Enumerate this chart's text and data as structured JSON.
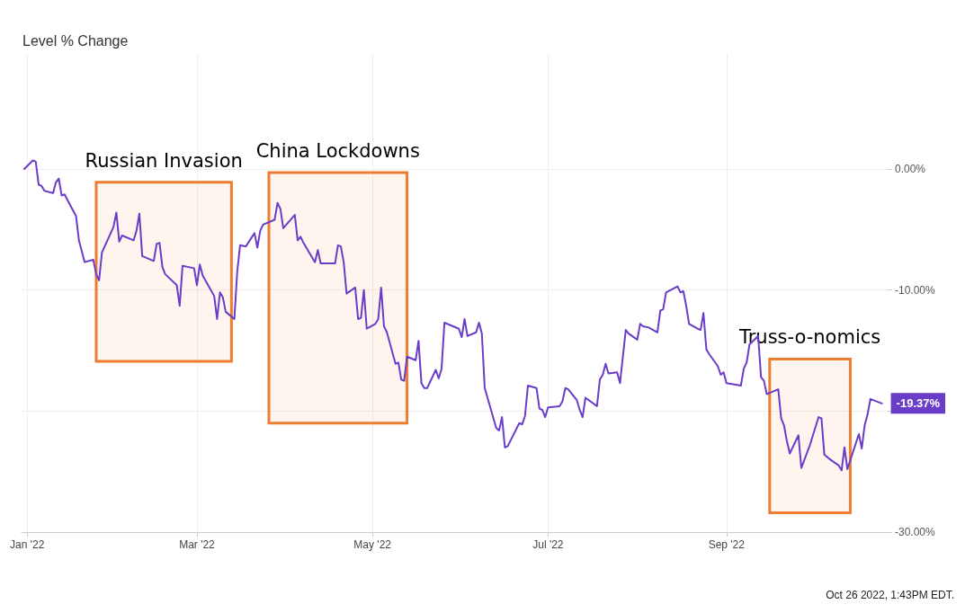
{
  "chart_data": {
    "type": "line",
    "title": "Level % Change",
    "x": [
      "2021-12-31",
      "2022-01-03",
      "2022-01-04",
      "2022-01-05",
      "2022-01-06",
      "2022-01-07",
      "2022-01-10",
      "2022-01-11",
      "2022-01-12",
      "2022-01-13",
      "2022-01-14",
      "2022-01-18",
      "2022-01-19",
      "2022-01-21",
      "2022-01-24",
      "2022-01-25",
      "2022-01-26",
      "2022-01-27",
      "2022-01-31",
      "2022-02-01",
      "2022-02-02",
      "2022-02-03",
      "2022-02-07",
      "2022-02-08",
      "2022-02-09",
      "2022-02-10",
      "2022-02-14",
      "2022-02-15",
      "2022-02-16",
      "2022-02-17",
      "2022-02-18",
      "2022-02-22",
      "2022-02-23",
      "2022-02-24",
      "2022-02-28",
      "2022-03-01",
      "2022-03-02",
      "2022-03-03",
      "2022-03-07",
      "2022-03-08",
      "2022-03-09",
      "2022-03-10",
      "2022-03-11",
      "2022-03-14",
      "2022-03-15",
      "2022-03-16",
      "2022-03-18",
      "2022-03-21",
      "2022-03-22",
      "2022-03-23",
      "2022-03-24",
      "2022-03-28",
      "2022-03-29",
      "2022-03-30",
      "2022-03-31",
      "2022-04-04",
      "2022-04-05",
      "2022-04-06",
      "2022-04-07",
      "2022-04-11",
      "2022-04-12",
      "2022-04-13",
      "2022-04-18",
      "2022-04-19",
      "2022-04-20",
      "2022-04-21",
      "2022-04-22",
      "2022-04-25",
      "2022-04-26",
      "2022-04-27",
      "2022-04-28",
      "2022-04-29",
      "2022-05-02",
      "2022-05-03",
      "2022-05-04",
      "2022-05-05",
      "2022-05-06",
      "2022-05-09",
      "2022-05-10",
      "2022-05-11",
      "2022-05-12",
      "2022-05-13",
      "2022-05-16",
      "2022-05-17",
      "2022-05-18",
      "2022-05-19",
      "2022-05-20",
      "2022-05-23",
      "2022-05-24",
      "2022-05-25",
      "2022-05-26",
      "2022-05-31",
      "2022-06-01",
      "2022-06-02",
      "2022-06-03",
      "2022-06-06",
      "2022-06-07",
      "2022-06-08",
      "2022-06-09",
      "2022-06-13",
      "2022-06-14",
      "2022-06-15",
      "2022-06-16",
      "2022-06-17",
      "2022-06-21",
      "2022-06-22",
      "2022-06-23",
      "2022-06-24",
      "2022-06-27",
      "2022-06-28",
      "2022-06-29",
      "2022-06-30",
      "2022-07-01",
      "2022-07-05",
      "2022-07-06",
      "2022-07-07",
      "2022-07-08",
      "2022-07-11",
      "2022-07-12",
      "2022-07-13",
      "2022-07-14",
      "2022-07-18",
      "2022-07-19",
      "2022-07-20",
      "2022-07-21",
      "2022-07-22",
      "2022-07-25",
      "2022-07-26",
      "2022-07-27",
      "2022-07-28",
      "2022-07-29",
      "2022-08-01",
      "2022-08-02",
      "2022-08-03",
      "2022-08-05",
      "2022-08-08",
      "2022-08-09",
      "2022-08-10",
      "2022-08-11",
      "2022-08-15",
      "2022-08-16",
      "2022-08-17",
      "2022-08-18",
      "2022-08-19",
      "2022-08-22",
      "2022-08-23",
      "2022-08-24",
      "2022-08-25",
      "2022-08-26",
      "2022-08-29",
      "2022-08-30",
      "2022-08-31",
      "2022-09-01",
      "2022-09-06",
      "2022-09-07",
      "2022-09-08",
      "2022-09-09",
      "2022-09-12",
      "2022-09-13",
      "2022-09-14",
      "2022-09-15",
      "2022-09-16",
      "2022-09-19",
      "2022-09-20",
      "2022-09-21",
      "2022-09-22",
      "2022-09-23",
      "2022-09-26",
      "2022-09-27",
      "2022-09-30",
      "2022-10-03",
      "2022-10-04",
      "2022-10-05",
      "2022-10-07",
      "2022-10-10",
      "2022-10-11",
      "2022-10-12",
      "2022-10-13",
      "2022-10-17",
      "2022-10-18",
      "2022-10-19",
      "2022-10-20",
      "2022-10-21",
      "2022-10-25"
    ],
    "series": [
      {
        "color": "#6a3dc8",
        "values": [
          0,
          0.7,
          0.6,
          -1.3,
          -1.4,
          -1.8,
          -2.0,
          -1.1,
          -0.8,
          -2.2,
          -2.1,
          -3.9,
          -5.9,
          -7.7,
          -7.5,
          -8.7,
          -9.2,
          -6.9,
          -4.8,
          -3.6,
          -6.0,
          -5.5,
          -5.9,
          -5.1,
          -3.7,
          -7.2,
          -7.6,
          -6.2,
          -6.1,
          -8.1,
          -8.7,
          -9.6,
          -11.3,
          -8.0,
          -8.2,
          -9.6,
          -7.9,
          -8.8,
          -10.5,
          -12.4,
          -10.2,
          -10.6,
          -11.8,
          -12.4,
          -8.5,
          -6.3,
          -6.4,
          -5.3,
          -6.5,
          -5.1,
          -4.6,
          -4.2,
          -2.8,
          -3.3,
          -4.9,
          -3.8,
          -5.9,
          -5.6,
          -6.1,
          -7.7,
          -6.7,
          -7.8,
          -7.8,
          -6.3,
          -6.4,
          -7.7,
          -10.3,
          -9.8,
          -12.4,
          -12.3,
          -10.0,
          -13.2,
          -12.8,
          -12.4,
          -9.8,
          -13.0,
          -13.5,
          -16.1,
          -16.0,
          -17.4,
          -17.5,
          -15.5,
          -15.8,
          -14.2,
          -17.7,
          -18.1,
          -18.1,
          -16.6,
          -17.3,
          -16.5,
          -12.7,
          -13.2,
          -13.9,
          -12.4,
          -13.8,
          -13.5,
          -12.7,
          -13.6,
          -18.1,
          -21.4,
          -21.6,
          -20.5,
          -23.0,
          -22.9,
          -21.0,
          -21.1,
          -20.4,
          -17.9,
          -18.1,
          -19.8,
          -19.9,
          -20.5,
          -19.7,
          -19.6,
          -19.2,
          -18.1,
          -18.2,
          -19.1,
          -19.9,
          -20.5,
          -18.9,
          -19.6,
          -17.4,
          -17.0,
          -16.1,
          -16.9,
          -16.8,
          -17.7,
          -15.5,
          -13.3,
          -13.6,
          -14.1,
          -12.8,
          -13.0,
          -13.1,
          -13.5,
          -11.7,
          -11.6,
          -10.2,
          -9.7,
          -10.2,
          -10.1,
          -11.3,
          -12.8,
          -13.2,
          -13.3,
          -11.9,
          -14.9,
          -15.3,
          -16.3,
          -17.0,
          -16.8,
          -17.7,
          -17.9,
          -16.5,
          -16.0,
          -14.5,
          -13.8,
          -17.2,
          -17.5,
          -18.6,
          -18.5,
          -18.2,
          -20.6,
          -21.2,
          -22.5,
          -23.5,
          -22.0,
          -24.7,
          -22.8,
          -20.5,
          -20.6,
          -23.6,
          -24.0,
          -24.5,
          -24.9,
          -23.0,
          -24.8,
          -21.9,
          -23.1,
          -21.2,
          -20.3,
          -19.0,
          -19.37
        ]
      }
    ],
    "xlim": [
      "2021-12-30",
      "2022-10-27"
    ],
    "xticks": [
      {
        "value": "2022-01-01",
        "label": "Jan '22"
      },
      {
        "value": "2022-03-01",
        "label": "Mar '22"
      },
      {
        "value": "2022-05-01",
        "label": "May '22"
      },
      {
        "value": "2022-07-01",
        "label": "Jul '22"
      },
      {
        "value": "2022-09-01",
        "label": "Sep '22"
      }
    ],
    "ylim": [
      -30,
      9.5
    ],
    "yticks": [
      {
        "value": 0,
        "label": "0.00%"
      },
      {
        "value": -10,
        "label": "-10.00%"
      },
      {
        "value": -20,
        "label": null
      },
      {
        "value": -30,
        "label": "-30.00%"
      }
    ],
    "grid": true,
    "marker": "none",
    "line_style": "solid",
    "bands": [
      {
        "axis": "x",
        "from": "2022-01-25",
        "to": "2022-03-13",
        "label": "Russian Invasion",
        "color": "#ed7d31"
      },
      {
        "axis": "x",
        "from": "2022-03-26",
        "to": "2022-05-13",
        "label": "China Lockdowns",
        "color": "#ed7d31"
      },
      {
        "axis": "x",
        "from": "2022-09-16",
        "to": "2022-10-14",
        "label": "Truss-o-nomics",
        "color": "#ed7d31"
      }
    ],
    "annotations": [
      {
        "text": "-19.37%",
        "x": "2022-10-25",
        "y": -19.37
      },
      "Oct 26 2022, 1:43PM EDT."
    ]
  }
}
